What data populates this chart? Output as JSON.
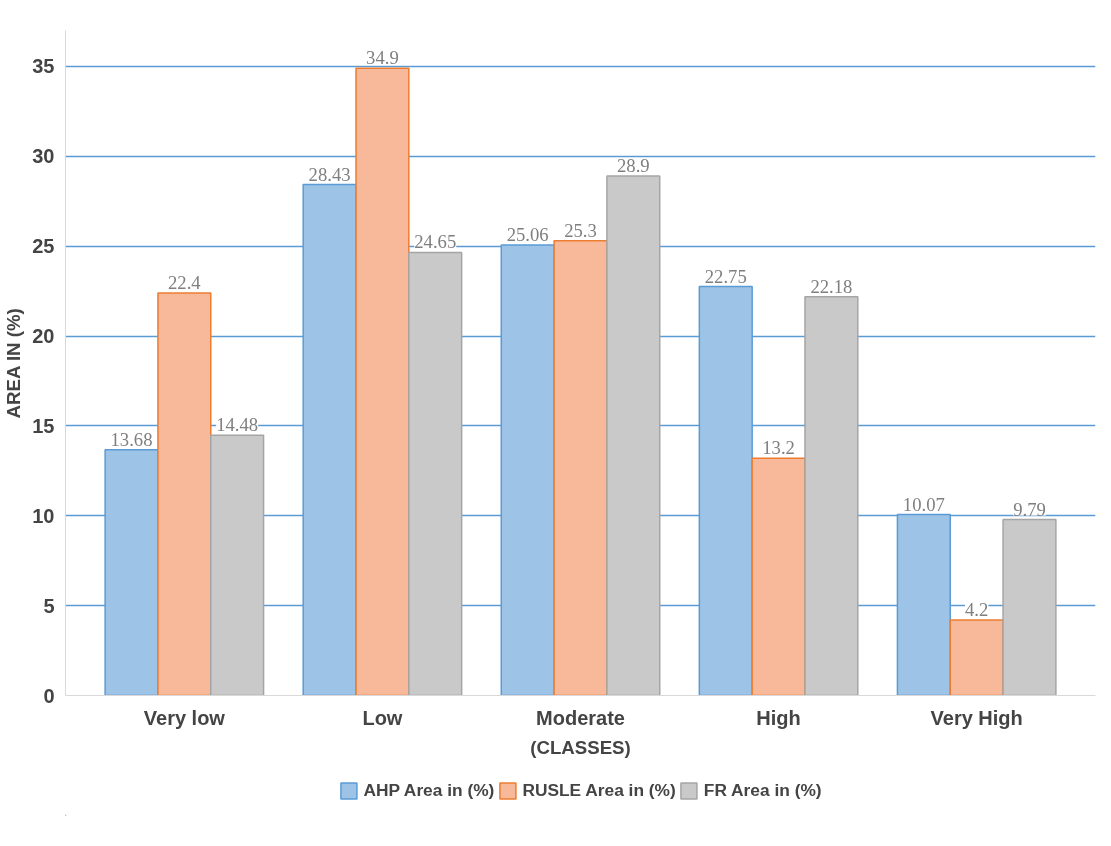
{
  "chart_data": {
    "type": "bar",
    "xlabel": "(CLASSES)",
    "ylabel": "AREA IN (%)",
    "categories": [
      "Very low",
      "Low",
      "Moderate",
      "High",
      "Very High"
    ],
    "series": [
      {
        "name": "AHP Area in (%)",
        "color": "#9dc3e6",
        "values": [
          13.68,
          28.43,
          25.06,
          22.75,
          10.07
        ]
      },
      {
        "name": "RUSLE Area in (%)",
        "color": "#f8b89a",
        "values": [
          22.4,
          34.9,
          25.3,
          13.2,
          4.2
        ]
      },
      {
        "name": "FR Area in (%)",
        "color": "#c9c9c9",
        "values": [
          14.48,
          24.65,
          28.9,
          22.18,
          9.79
        ]
      }
    ],
    "ylim": [
      0,
      37
    ],
    "yticks": [
      0,
      5,
      10,
      15,
      20,
      25,
      30,
      35
    ],
    "grid": "y",
    "legend": "bottom",
    "data_labels": true
  }
}
